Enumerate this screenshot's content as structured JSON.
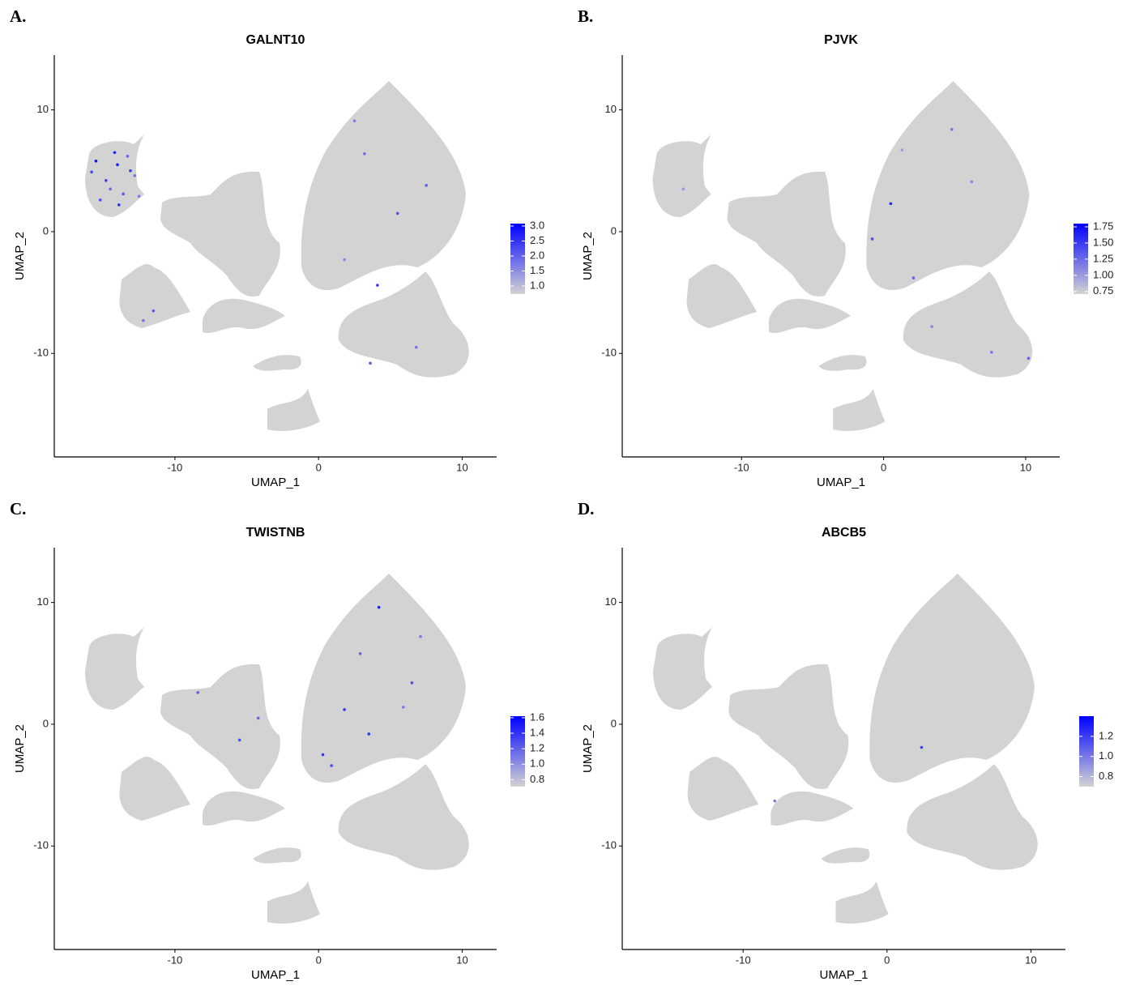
{
  "chart_data": [
    {
      "type": "scatter",
      "panel_label": "A.",
      "title": "GALNT10",
      "x_label": "UMAP_1",
      "y_label": "UMAP_2",
      "xlim": [
        -18.4,
        12.4
      ],
      "ylim": [
        -18.5,
        14.5
      ],
      "xticks": [
        -10,
        0,
        10
      ],
      "yticks": [
        -10,
        0,
        10
      ],
      "x": [
        -15.5,
        -14.8,
        -14.2,
        -13.6,
        -13.1,
        -15.2,
        -14.5,
        -13.9,
        -12.8,
        -15.8,
        -14.0,
        -13.3,
        -12.5,
        -11.5,
        -12.2,
        3.2,
        5.5,
        1.8,
        7.5,
        4.1,
        2.5,
        6.8,
        3.6
      ],
      "y": [
        5.8,
        4.2,
        6.5,
        3.1,
        5.0,
        2.6,
        3.5,
        2.2,
        4.6,
        4.9,
        5.5,
        6.2,
        2.9,
        -6.5,
        -7.3,
        6.4,
        1.5,
        -2.3,
        3.8,
        -4.4,
        9.1,
        -9.5,
        -10.8
      ],
      "values": [
        2.9,
        2.4,
        2.7,
        2.1,
        2.5,
        2.2,
        1.9,
        2.6,
        1.8,
        2.3,
        2.8,
        2.0,
        1.7,
        2.1,
        1.8,
        1.9,
        2.2,
        1.6,
        2.0,
        2.4,
        1.7,
        1.8,
        2.1
      ],
      "color_low": "#d3d3d3",
      "color_high": "#0000ff",
      "colorlim": [
        0.73,
        3.08
      ],
      "colorticks": [
        {
          "value": 3,
          "label": "3.0"
        },
        2.5,
        {
          "value": 2,
          "label": "2.0"
        },
        1.5,
        {
          "value": 1,
          "label": "1.0"
        }
      ]
    },
    {
      "type": "scatter",
      "panel_label": "B.",
      "title": "PJVK",
      "x_label": "UMAP_1",
      "y_label": "UMAP_2",
      "xlim": [
        -18.4,
        12.4
      ],
      "ylim": [
        -18.5,
        14.5
      ],
      "xticks": [
        -10,
        0,
        10
      ],
      "yticks": [
        -10,
        0,
        10
      ],
      "x": [
        0.5,
        2.1,
        4.8,
        6.2,
        -0.8,
        1.3,
        7.6,
        3.4,
        10.2,
        -14.1
      ],
      "y": [
        2.3,
        -3.8,
        8.4,
        4.1,
        -0.6,
        6.7,
        -9.9,
        -7.8,
        -10.4,
        3.5
      ],
      "values": [
        1.6,
        1.3,
        1.2,
        1.1,
        1.4,
        1.0,
        1.2,
        1.1,
        1.3,
        1.0
      ],
      "color_low": "#d3d3d3",
      "color_high": "#0000ff",
      "colorlim": [
        0.71,
        1.8
      ],
      "colorticks": [
        1.75,
        {
          "value": 1.5,
          "label": "1.50"
        },
        1.25,
        {
          "value": 1,
          "label": "1.00"
        },
        0.75
      ]
    },
    {
      "type": "scatter",
      "panel_label": "C.",
      "title": "TWISTNB",
      "x_label": "UMAP_1",
      "y_label": "UMAP_2",
      "xlim": [
        -18.4,
        12.4
      ],
      "ylim": [
        -18.5,
        14.5
      ],
      "xticks": [
        -10,
        0,
        10
      ],
      "yticks": [
        -10,
        0,
        10
      ],
      "x": [
        4.2,
        1.8,
        6.5,
        0.3,
        2.9,
        7.1,
        -5.5,
        -8.4,
        3.5,
        5.9,
        0.9,
        -4.2
      ],
      "y": [
        9.6,
        1.2,
        3.4,
        -2.5,
        5.8,
        7.2,
        -1.3,
        2.6,
        -0.8,
        1.4,
        -3.4,
        0.5
      ],
      "values": [
        1.5,
        1.4,
        1.3,
        1.4,
        1.2,
        1.1,
        1.3,
        1.2,
        1.4,
        1.1,
        1.3,
        1.2
      ],
      "color_low": "#d3d3d3",
      "color_high": "#0000ff",
      "colorlim": [
        0.71,
        1.62
      ],
      "colorticks": [
        1.6,
        1.4,
        1.2,
        {
          "value": 1,
          "label": "1.0"
        },
        0.8
      ]
    },
    {
      "type": "scatter",
      "panel_label": "D.",
      "title": "ABCB5",
      "x_label": "UMAP_1",
      "y_label": "UMAP_2",
      "xlim": [
        -18.4,
        12.4
      ],
      "ylim": [
        -18.5,
        14.5
      ],
      "xticks": [
        -10,
        0,
        10
      ],
      "yticks": [
        -10,
        0,
        10
      ],
      "x": [
        2.4,
        -7.8
      ],
      "y": [
        -1.9,
        -6.3
      ],
      "values": [
        1.2,
        1.0
      ],
      "color_low": "#d3d3d3",
      "color_high": "#0000ff",
      "colorlim": [
        0.7,
        1.4
      ],
      "colorticks": [
        1.2,
        {
          "value": 1,
          "label": "1.0"
        },
        0.8
      ]
    }
  ]
}
